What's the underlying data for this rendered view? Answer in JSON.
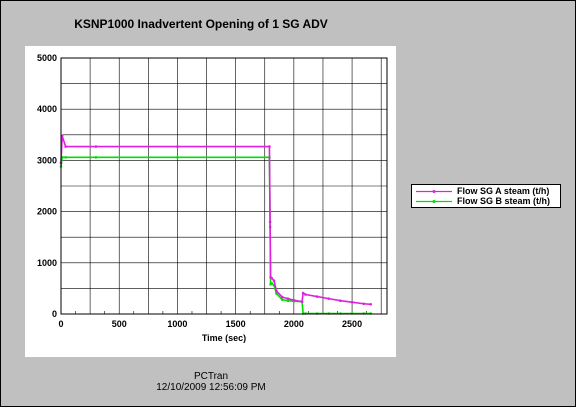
{
  "chart_data": {
    "type": "line",
    "title": "KSNP1000 Inadvertent Opening of 1 SG ADV",
    "xlabel": "Time (sec)",
    "ylabel": "",
    "xlim": [
      0,
      2800
    ],
    "ylim": [
      0,
      5000
    ],
    "xticks": [
      "0",
      "500",
      "1000",
      "1500",
      "2000",
      "2500"
    ],
    "yticks": [
      "0",
      "1000",
      "2000",
      "3000",
      "4000",
      "5000"
    ],
    "grid": true,
    "legend_position": "right",
    "series": [
      {
        "name": "Flow SG A steam (t/h)",
        "color": "#e020e0",
        "x": [
          0,
          10,
          40,
          300,
          1000,
          1790,
          1796,
          1800,
          1810,
          1830,
          1850,
          1900,
          1950,
          2000,
          2070,
          2080,
          2100,
          2200,
          2300,
          2400,
          2500,
          2600,
          2660
        ],
        "y": [
          2950,
          3480,
          3270,
          3270,
          3270,
          3270,
          1800,
          720,
          700,
          650,
          450,
          330,
          300,
          270,
          240,
          410,
          380,
          340,
          300,
          260,
          230,
          200,
          190
        ]
      },
      {
        "name": "Flow SG B steam (t/h)",
        "color": "#00e000",
        "x": [
          0,
          10,
          40,
          300,
          1000,
          1790,
          1796,
          1800,
          1810,
          1830,
          1850,
          1900,
          1950,
          2000,
          2070,
          2080,
          2100,
          2200,
          2300,
          2400,
          2500,
          2600,
          2660
        ],
        "y": [
          2880,
          3060,
          3060,
          3060,
          3060,
          3060,
          1700,
          580,
          600,
          560,
          400,
          280,
          260,
          250,
          240,
          10,
          10,
          10,
          10,
          10,
          10,
          10,
          10
        ]
      }
    ]
  },
  "footer": {
    "line1": "PCTran",
    "line2": "12/10/2009 12:56:09 PM"
  }
}
